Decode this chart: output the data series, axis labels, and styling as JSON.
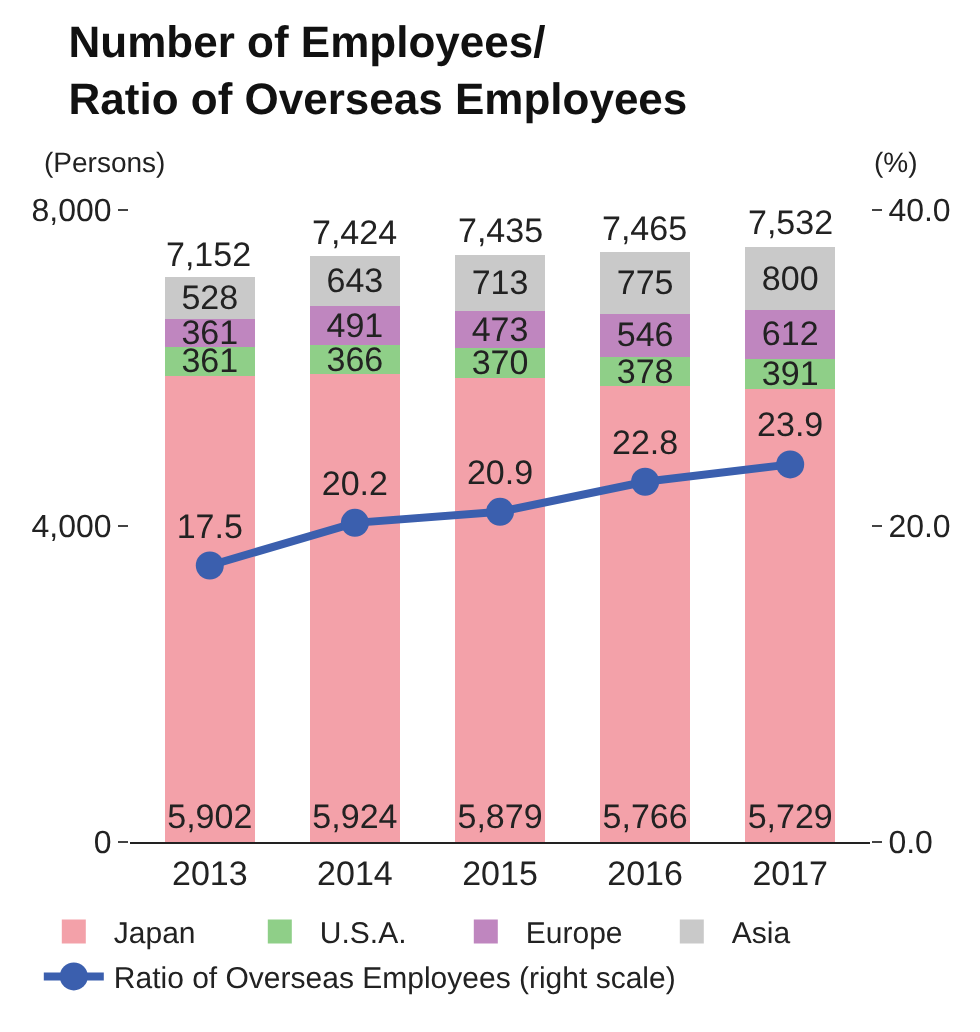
{
  "chart_data": {
    "type": "bar",
    "stacked": true,
    "title": "Number of Employees/\nRatio of Overseas Employees",
    "ylabel": "(Persons)",
    "y2label": "(%)",
    "categories": [
      "2013",
      "2014",
      "2015",
      "2016",
      "2017"
    ],
    "series": [
      {
        "name": "Japan",
        "color": "#f3a1a9",
        "values": [
          5902,
          5924,
          5879,
          5766,
          5729
        ],
        "value_labels": [
          "5,902",
          "5,924",
          "5,879",
          "5,766",
          "5,729"
        ]
      },
      {
        "name": "U.S.A.",
        "color": "#8fcf88",
        "values": [
          361,
          366,
          370,
          378,
          391
        ]
      },
      {
        "name": "Europe",
        "color": "#bf86bf",
        "values": [
          361,
          491,
          473,
          546,
          612
        ]
      },
      {
        "name": "Asia",
        "color": "#c9c9c9",
        "values": [
          528,
          643,
          713,
          775,
          800
        ]
      },
      {
        "name": "Ratio of Overseas Employees (right scale)",
        "type": "line",
        "axis": "y2",
        "color": "#3b5fae",
        "marker": "circle",
        "values": [
          17.5,
          20.2,
          20.9,
          22.8,
          23.9
        ]
      }
    ],
    "totals": [
      "7,152",
      "7,424",
      "7,435",
      "7,465",
      "7,532"
    ],
    "data_labels": true,
    "ylim": [
      0,
      8000
    ],
    "yticks": [
      {
        "value": 0,
        "label": "0"
      },
      {
        "value": 4000,
        "label": "4,000"
      },
      {
        "value": 8000,
        "label": "8,000"
      }
    ],
    "y2lim": [
      0,
      40
    ],
    "y2ticks": [
      {
        "value": 0,
        "label": "0.0"
      },
      {
        "value": 20,
        "label": "20.0"
      },
      {
        "value": 40,
        "label": "40.0"
      }
    ],
    "legend": "bottom"
  }
}
